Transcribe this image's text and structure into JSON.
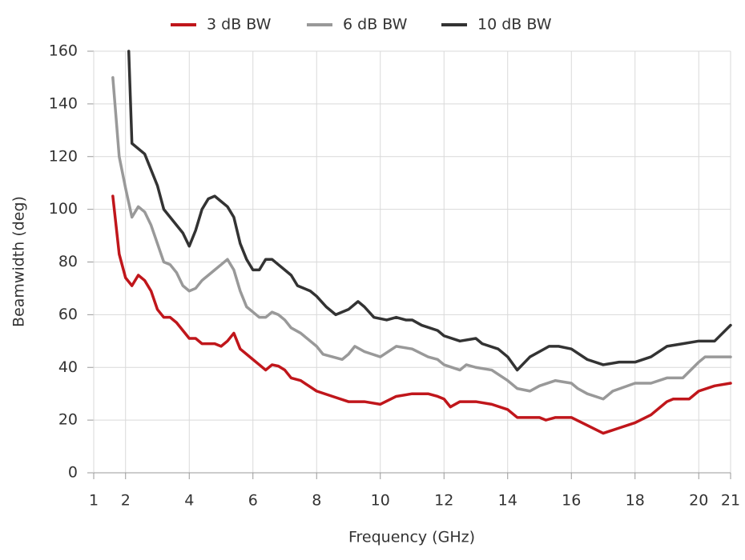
{
  "chart_data": {
    "type": "line",
    "x_label": "Frequency (GHz)",
    "y_label": "Beamwidth (deg)",
    "xlim": [
      1,
      21
    ],
    "xticks": [
      1,
      2,
      4,
      6,
      8,
      10,
      12,
      14,
      16,
      18,
      20,
      21
    ],
    "ylim": [
      0,
      160
    ],
    "yticks": [
      0,
      20,
      40,
      60,
      80,
      100,
      120,
      140,
      160
    ],
    "grid": true,
    "legend": "top",
    "series": [
      {
        "name": "3 dB BW",
        "color": "#c0161b",
        "x": [
          1.6,
          1.8,
          2.0,
          2.2,
          2.4,
          2.6,
          2.8,
          3.0,
          3.2,
          3.4,
          3.6,
          3.8,
          4.0,
          4.2,
          4.4,
          4.6,
          4.8,
          5.0,
          5.2,
          5.4,
          5.6,
          5.8,
          6.0,
          6.2,
          6.4,
          6.6,
          6.8,
          7.0,
          7.2,
          7.5,
          8.0,
          8.5,
          9.0,
          9.5,
          10.0,
          10.5,
          11.0,
          11.5,
          11.8,
          12.0,
          12.2,
          12.5,
          13.0,
          13.5,
          14.0,
          14.3,
          15.0,
          15.2,
          15.5,
          16.0,
          16.5,
          17.0,
          17.5,
          18.0,
          18.5,
          19.0,
          19.2,
          19.7,
          20.0,
          20.5,
          21.0
        ],
        "values": [
          105,
          83,
          74,
          71,
          75,
          73,
          69,
          62,
          59,
          59,
          57,
          54,
          51,
          51,
          49,
          49,
          49,
          48,
          50,
          53,
          47,
          45,
          43,
          41,
          39,
          41,
          40.5,
          39,
          36,
          35,
          31,
          29,
          27,
          27,
          26,
          29,
          30,
          30,
          29,
          28,
          25,
          27,
          27,
          26,
          24,
          21,
          21,
          20,
          21,
          21,
          18,
          15,
          17,
          19,
          22,
          27,
          28,
          28,
          31,
          33,
          34
        ]
      },
      {
        "name": "6 dB BW",
        "color": "#999999",
        "x": [
          1.6,
          1.8,
          2.0,
          2.2,
          2.4,
          2.6,
          2.8,
          3.0,
          3.2,
          3.4,
          3.6,
          3.8,
          4.0,
          4.2,
          4.4,
          4.6,
          4.8,
          5.0,
          5.2,
          5.4,
          5.6,
          5.8,
          6.0,
          6.2,
          6.4,
          6.6,
          6.8,
          7.0,
          7.2,
          7.5,
          8.0,
          8.2,
          8.5,
          8.8,
          9.0,
          9.2,
          9.5,
          10.0,
          10.5,
          11.0,
          11.5,
          11.8,
          12.0,
          12.5,
          12.7,
          13.0,
          13.5,
          14.0,
          14.3,
          14.7,
          15.0,
          15.5,
          16.0,
          16.2,
          16.5,
          17.0,
          17.3,
          18.0,
          18.5,
          19.0,
          19.5,
          20.0,
          20.2,
          21.0
        ],
        "values": [
          150,
          120,
          108,
          97,
          101,
          99,
          94,
          87,
          80,
          79,
          76,
          71,
          69,
          70,
          73,
          75,
          77,
          79,
          81,
          77,
          69,
          63,
          61,
          59,
          59,
          61,
          60,
          58,
          55,
          53,
          48,
          45,
          44,
          43,
          45,
          48,
          46,
          44,
          48,
          47,
          44,
          43,
          41,
          39,
          41,
          40,
          39,
          35,
          32,
          31,
          33,
          35,
          34,
          32,
          30,
          28,
          31,
          34,
          34,
          36,
          36,
          42,
          44,
          44
        ]
      },
      {
        "name": "10 dB BW",
        "color": "#333333",
        "x": [
          2.1,
          2.2,
          2.6,
          3.0,
          3.2,
          3.6,
          3.8,
          4.0,
          4.2,
          4.4,
          4.6,
          4.8,
          5.0,
          5.2,
          5.4,
          5.6,
          5.8,
          6.0,
          6.2,
          6.4,
          6.6,
          6.8,
          7.0,
          7.2,
          7.4,
          7.8,
          8.0,
          8.3,
          8.6,
          9.0,
          9.3,
          9.5,
          9.8,
          10.2,
          10.5,
          10.8,
          11.0,
          11.3,
          11.8,
          12.0,
          12.5,
          13.0,
          13.2,
          13.7,
          14.0,
          14.3,
          14.7,
          15.0,
          15.3,
          15.6,
          16.0,
          16.5,
          17.0,
          17.5,
          18.0,
          18.5,
          19.0,
          19.5,
          20.0,
          20.5,
          21.0
        ],
        "values": [
          160,
          125,
          121,
          109,
          100,
          94,
          91,
          86,
          92,
          100,
          104,
          105,
          103,
          101,
          97,
          87,
          81,
          77,
          77,
          81,
          81,
          79,
          77,
          75,
          71,
          69,
          67,
          63,
          60,
          62,
          65,
          63,
          59,
          58,
          59,
          58,
          58,
          56,
          54,
          52,
          50,
          51,
          49,
          47,
          44,
          39,
          44,
          46,
          48,
          48,
          47,
          43,
          41,
          42,
          42,
          44,
          48,
          49,
          50,
          50,
          56
        ]
      }
    ]
  }
}
